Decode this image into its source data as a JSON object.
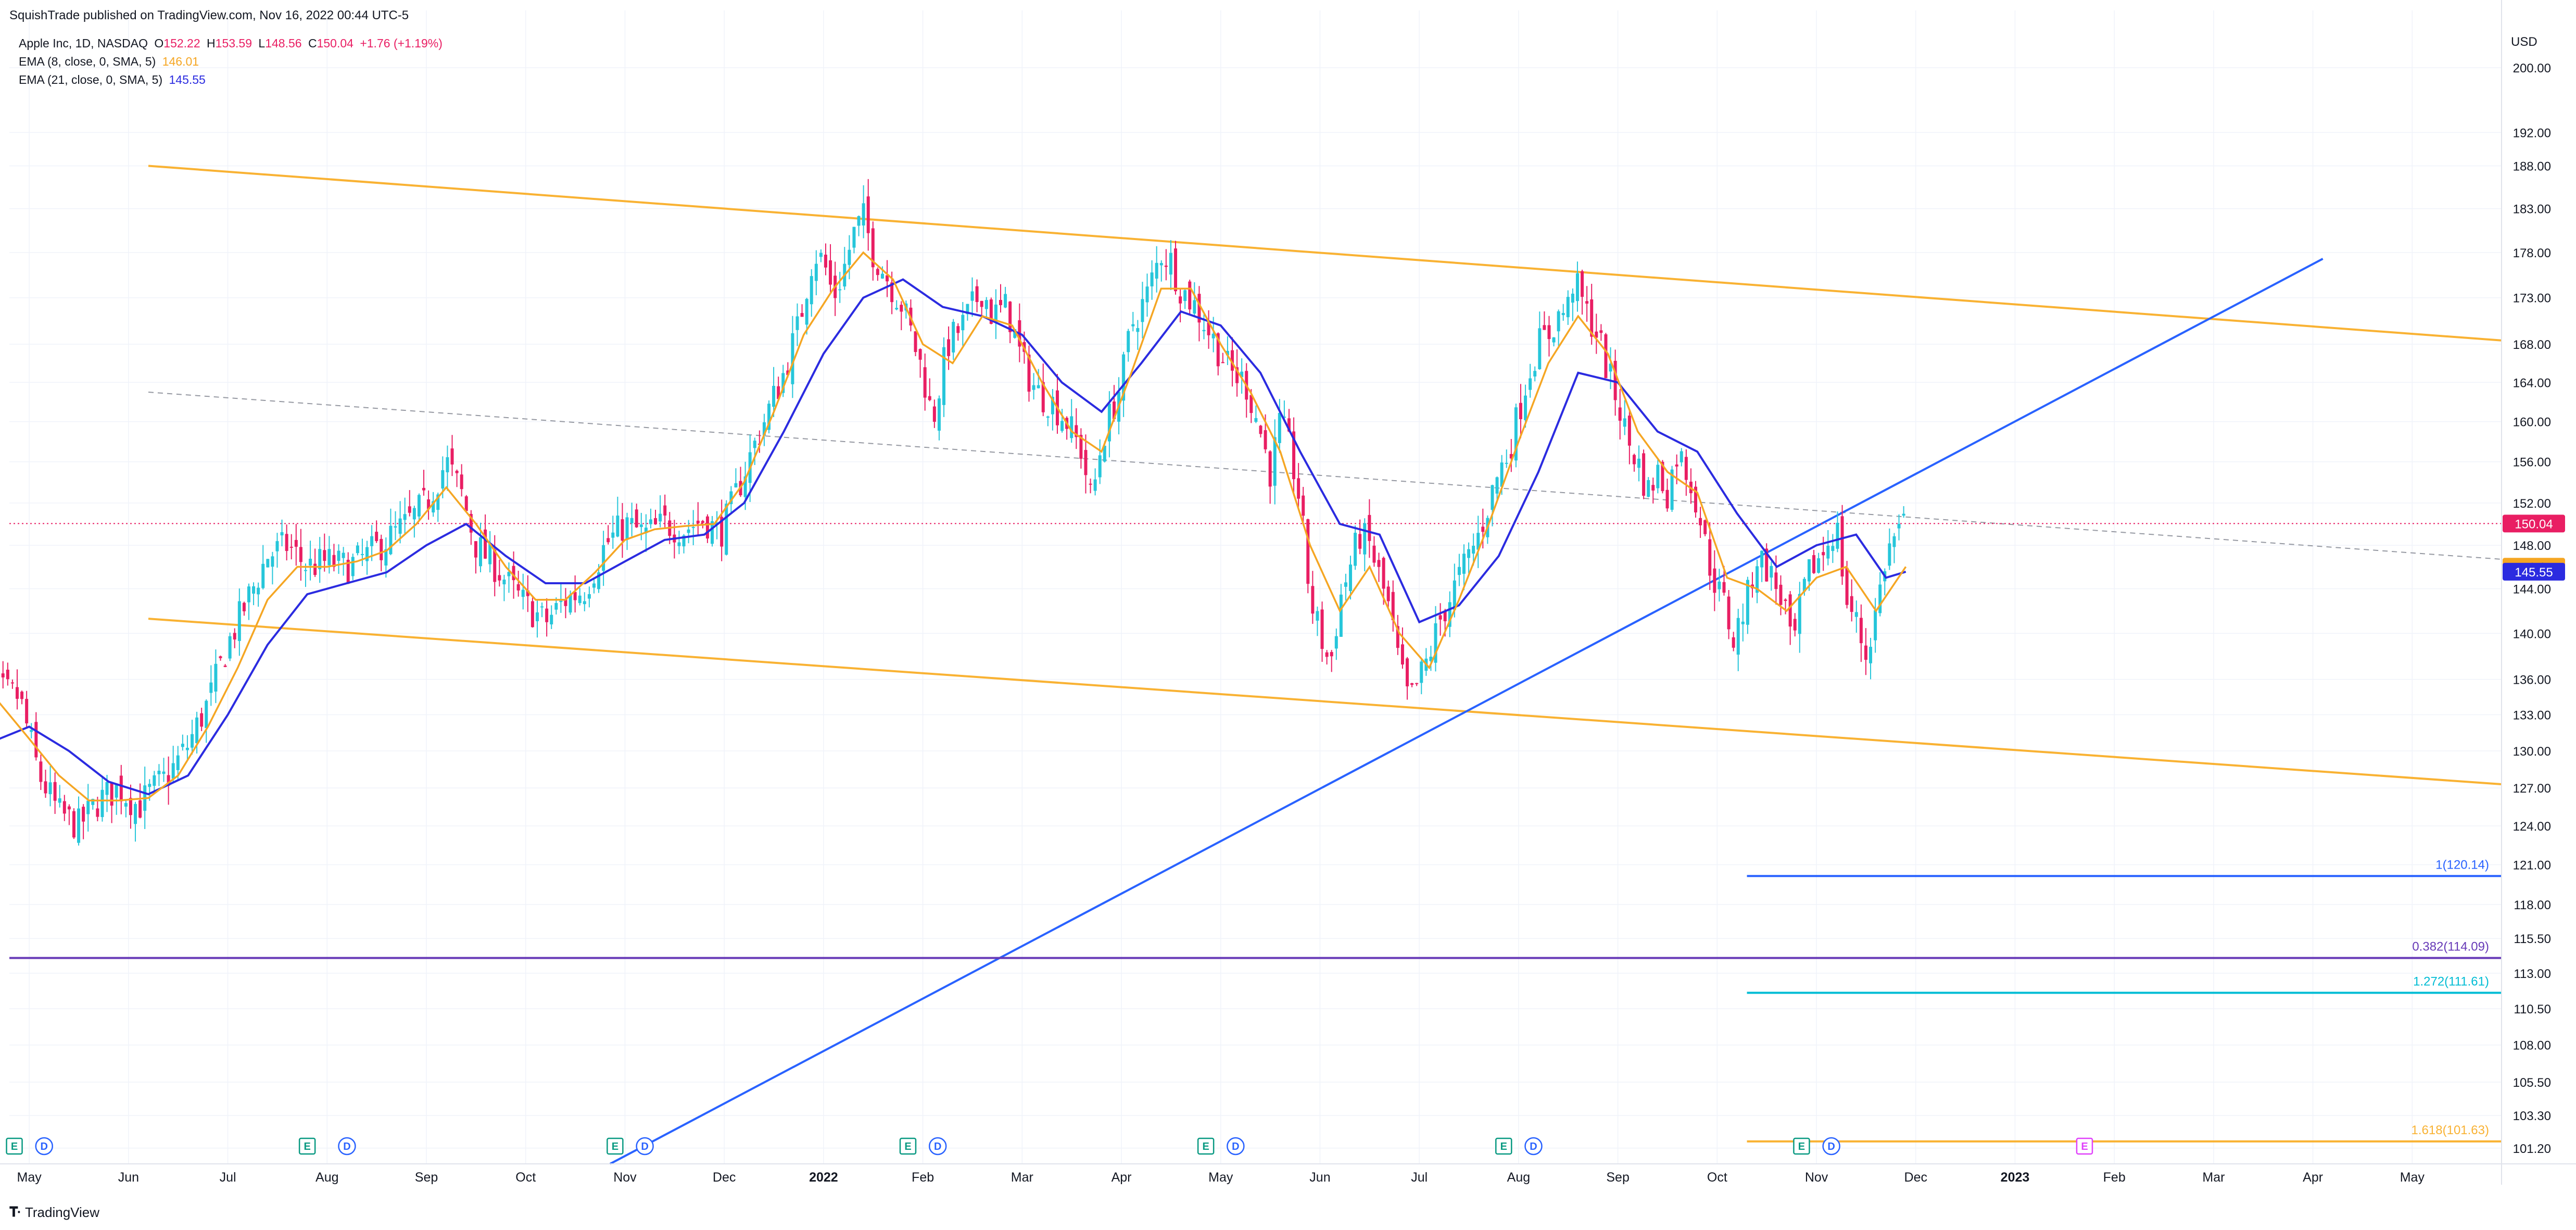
{
  "header": {
    "published": "SquishTrade published on TradingView.com, Nov 16, 2022 00:44 UTC-5"
  },
  "legend": {
    "symbol": "Apple Inc, 1D, NASDAQ",
    "o_label": "O",
    "o_value": "152.22",
    "h_label": "H",
    "h_value": "153.59",
    "l_label": "L",
    "l_value": "148.56",
    "c_label": "C",
    "c_value": "150.04",
    "change": "+1.76 (+1.19%)",
    "ema8_label": "EMA (8, close, 0, SMA, 5)",
    "ema8_value": "146.01",
    "ema21_label": "EMA (21, close, 0, SMA, 5)",
    "ema21_value": "145.55"
  },
  "footer": {
    "brand": "TradingView"
  },
  "colors": {
    "up": "#26c6da",
    "down": "#e91e63",
    "ema8": "#f5a623",
    "ema21": "#2b2be0",
    "channel": "#f9b233",
    "trend": "#2962ff",
    "grid": "#f0f3fa"
  },
  "chart_data": {
    "type": "candlestick",
    "title": "Apple Inc, 1D, NASDAQ",
    "yaxis": {
      "unit": "USD",
      "scale": "log",
      "ylim": [
        100.2,
        206.0
      ],
      "ticks": [
        "101.20",
        "103.30",
        "105.50",
        "108.00",
        "110.50",
        "113.00",
        "115.50",
        "118.00",
        "121.00",
        "124.00",
        "127.00",
        "130.00",
        "133.00",
        "136.00",
        "140.00",
        "144.00",
        "148.00",
        "152.00",
        "156.00",
        "160.00",
        "164.00",
        "168.00",
        "173.00",
        "178.00",
        "183.00",
        "188.00",
        "192.00",
        "200.00"
      ]
    },
    "xaxis": {
      "range_months": [
        -0.2,
        24.9
      ],
      "ticks": [
        {
          "label": "May",
          "m": 0
        },
        {
          "label": "Jun",
          "m": 1
        },
        {
          "label": "Jul",
          "m": 2
        },
        {
          "label": "Aug",
          "m": 3
        },
        {
          "label": "Sep",
          "m": 4
        },
        {
          "label": "Oct",
          "m": 5
        },
        {
          "label": "Nov",
          "m": 6
        },
        {
          "label": "Dec",
          "m": 7
        },
        {
          "label": "2022",
          "m": 8,
          "bold": true
        },
        {
          "label": "Feb",
          "m": 9
        },
        {
          "label": "Mar",
          "m": 10
        },
        {
          "label": "Apr",
          "m": 11
        },
        {
          "label": "May",
          "m": 12
        },
        {
          "label": "Jun",
          "m": 13
        },
        {
          "label": "Jul",
          "m": 14
        },
        {
          "label": "Aug",
          "m": 15
        },
        {
          "label": "Sep",
          "m": 16
        },
        {
          "label": "Oct",
          "m": 17
        },
        {
          "label": "Nov",
          "m": 18
        },
        {
          "label": "Dec",
          "m": 19
        },
        {
          "label": "2023",
          "m": 20,
          "bold": true
        },
        {
          "label": "Feb",
          "m": 21
        },
        {
          "label": "Mar",
          "m": 22
        },
        {
          "label": "Apr",
          "m": 23
        },
        {
          "label": "May",
          "m": 24
        }
      ]
    },
    "close_path": [
      [
        -0.55,
        134
      ],
      [
        -0.3,
        135
      ],
      [
        -0.1,
        134.5
      ],
      [
        0.1,
        128
      ],
      [
        0.3,
        125
      ],
      [
        0.5,
        124
      ],
      [
        0.7,
        126
      ],
      [
        0.9,
        127
      ],
      [
        1.1,
        125.5
      ],
      [
        1.2,
        126.5
      ],
      [
        1.4,
        128
      ],
      [
        1.6,
        130.5
      ],
      [
        1.8,
        134
      ],
      [
        2.0,
        139
      ],
      [
        2.2,
        143
      ],
      [
        2.4,
        147
      ],
      [
        2.6,
        148
      ],
      [
        2.8,
        146
      ],
      [
        3.0,
        146.5
      ],
      [
        3.2,
        146
      ],
      [
        3.4,
        147
      ],
      [
        3.6,
        148.5
      ],
      [
        3.8,
        150
      ],
      [
        4.0,
        152
      ],
      [
        4.2,
        156
      ],
      [
        4.35,
        153
      ],
      [
        4.5,
        148
      ],
      [
        4.7,
        146
      ],
      [
        4.9,
        143.5
      ],
      [
        5.0,
        142.5
      ],
      [
        5.2,
        141
      ],
      [
        5.4,
        143
      ],
      [
        5.6,
        144
      ],
      [
        5.8,
        148
      ],
      [
        6.0,
        150
      ],
      [
        6.2,
        149
      ],
      [
        6.4,
        150
      ],
      [
        6.6,
        149.5
      ],
      [
        6.8,
        150.5
      ],
      [
        6.95,
        149
      ],
      [
        7.05,
        151
      ],
      [
        7.2,
        155
      ],
      [
        7.4,
        160
      ],
      [
        7.6,
        165
      ],
      [
        7.75,
        170
      ],
      [
        7.9,
        178
      ],
      [
        8.0,
        177
      ],
      [
        8.1,
        173
      ],
      [
        8.2,
        176
      ],
      [
        8.3,
        180
      ],
      [
        8.4,
        182
      ],
      [
        8.5,
        178
      ],
      [
        8.6,
        176
      ],
      [
        8.8,
        172
      ],
      [
        9.0,
        165
      ],
      [
        9.1,
        160
      ],
      [
        9.25,
        168
      ],
      [
        9.4,
        170
      ],
      [
        9.5,
        172
      ],
      [
        9.6,
        174
      ],
      [
        9.7,
        171
      ],
      [
        9.85,
        172
      ],
      [
        10.0,
        166
      ],
      [
        10.15,
        163
      ],
      [
        10.3,
        162
      ],
      [
        10.45,
        160
      ],
      [
        10.6,
        157
      ],
      [
        10.7,
        152
      ],
      [
        10.8,
        158
      ],
      [
        10.9,
        161
      ],
      [
        11.0,
        164
      ],
      [
        11.1,
        170
      ],
      [
        11.25,
        173
      ],
      [
        11.4,
        178
      ],
      [
        11.5,
        177
      ],
      [
        11.6,
        174
      ],
      [
        11.75,
        172
      ],
      [
        11.9,
        169
      ],
      [
        12.0,
        167
      ],
      [
        12.1,
        165
      ],
      [
        12.25,
        164
      ],
      [
        12.4,
        159
      ],
      [
        12.5,
        155
      ],
      [
        12.6,
        160
      ],
      [
        12.7,
        157
      ],
      [
        12.8,
        152
      ],
      [
        12.9,
        143
      ],
      [
        13.0,
        140
      ],
      [
        13.1,
        137
      ],
      [
        13.2,
        143
      ],
      [
        13.3,
        146
      ],
      [
        13.4,
        149
      ],
      [
        13.5,
        148
      ],
      [
        13.6,
        145
      ],
      [
        13.7,
        142
      ],
      [
        13.8,
        137
      ],
      [
        13.9,
        134
      ],
      [
        14.0,
        136
      ],
      [
        14.1,
        138
      ],
      [
        14.2,
        141
      ],
      [
        14.3,
        143
      ],
      [
        14.4,
        145
      ],
      [
        14.5,
        147
      ],
      [
        14.6,
        149
      ],
      [
        14.7,
        152
      ],
      [
        14.8,
        155
      ],
      [
        14.9,
        157
      ],
      [
        15.0,
        161
      ],
      [
        15.1,
        165
      ],
      [
        15.2,
        168
      ],
      [
        15.3,
        169
      ],
      [
        15.4,
        171
      ],
      [
        15.5,
        172
      ],
      [
        15.55,
        175
      ],
      [
        15.7,
        171
      ],
      [
        15.8,
        169
      ],
      [
        15.9,
        165
      ],
      [
        16.0,
        162
      ],
      [
        16.1,
        158
      ],
      [
        16.2,
        156
      ],
      [
        16.3,
        153
      ],
      [
        16.4,
        155
      ],
      [
        16.5,
        153
      ],
      [
        16.6,
        157
      ],
      [
        16.7,
        155
      ],
      [
        16.8,
        152
      ],
      [
        16.9,
        147
      ],
      [
        17.0,
        144
      ],
      [
        17.1,
        142
      ],
      [
        17.15,
        139
      ],
      [
        17.3,
        143
      ],
      [
        17.4,
        147
      ],
      [
        17.5,
        146
      ],
      [
        17.6,
        144
      ],
      [
        17.7,
        142
      ],
      [
        17.75,
        138
      ],
      [
        17.85,
        143
      ],
      [
        17.95,
        146
      ],
      [
        18.05,
        147
      ],
      [
        18.2,
        150
      ],
      [
        18.3,
        143
      ],
      [
        18.4,
        141
      ],
      [
        18.5,
        138
      ],
      [
        18.6,
        142
      ],
      [
        18.7,
        147
      ],
      [
        18.8,
        149
      ],
      [
        18.9,
        150.04
      ]
    ],
    "ema8_path": [
      [
        -0.55,
        133
      ],
      [
        -0.3,
        134
      ],
      [
        0,
        131
      ],
      [
        0.3,
        128
      ],
      [
        0.6,
        126
      ],
      [
        0.9,
        126
      ],
      [
        1.2,
        126.2
      ],
      [
        1.5,
        128
      ],
      [
        1.8,
        132
      ],
      [
        2.1,
        137
      ],
      [
        2.4,
        143
      ],
      [
        2.7,
        146
      ],
      [
        3.0,
        146
      ],
      [
        3.3,
        146.5
      ],
      [
        3.6,
        147.5
      ],
      [
        3.9,
        150
      ],
      [
        4.2,
        153.5
      ],
      [
        4.5,
        150
      ],
      [
        4.8,
        146
      ],
      [
        5.1,
        143
      ],
      [
        5.4,
        143
      ],
      [
        5.7,
        145.5
      ],
      [
        6.0,
        148.5
      ],
      [
        6.3,
        149.5
      ],
      [
        6.6,
        149.8
      ],
      [
        6.9,
        150
      ],
      [
        7.2,
        154
      ],
      [
        7.5,
        161
      ],
      [
        7.8,
        169
      ],
      [
        8.1,
        174
      ],
      [
        8.4,
        178
      ],
      [
        8.7,
        175
      ],
      [
        9.0,
        168
      ],
      [
        9.3,
        166
      ],
      [
        9.6,
        171
      ],
      [
        9.9,
        170
      ],
      [
        10.2,
        164
      ],
      [
        10.5,
        159
      ],
      [
        10.8,
        157
      ],
      [
        11.1,
        165
      ],
      [
        11.4,
        174
      ],
      [
        11.7,
        174
      ],
      [
        12.0,
        168
      ],
      [
        12.3,
        163
      ],
      [
        12.6,
        157
      ],
      [
        12.9,
        148
      ],
      [
        13.2,
        142
      ],
      [
        13.5,
        146
      ],
      [
        13.8,
        140
      ],
      [
        14.1,
        137
      ],
      [
        14.4,
        143
      ],
      [
        14.7,
        150
      ],
      [
        15.0,
        158
      ],
      [
        15.3,
        166
      ],
      [
        15.6,
        171
      ],
      [
        15.9,
        167
      ],
      [
        16.2,
        159
      ],
      [
        16.5,
        155
      ],
      [
        16.8,
        153
      ],
      [
        17.1,
        145
      ],
      [
        17.4,
        144
      ],
      [
        17.7,
        142
      ],
      [
        18.0,
        145
      ],
      [
        18.3,
        146
      ],
      [
        18.6,
        142
      ],
      [
        18.9,
        146.01
      ]
    ],
    "ema21_path": [
      [
        -0.55,
        127
      ],
      [
        -0.3,
        131
      ],
      [
        0,
        132
      ],
      [
        0.4,
        130
      ],
      [
        0.8,
        127.5
      ],
      [
        1.2,
        126.5
      ],
      [
        1.6,
        128
      ],
      [
        2.0,
        133
      ],
      [
        2.4,
        139
      ],
      [
        2.8,
        143.5
      ],
      [
        3.2,
        144.5
      ],
      [
        3.6,
        145.5
      ],
      [
        4.0,
        148
      ],
      [
        4.4,
        150
      ],
      [
        4.8,
        147
      ],
      [
        5.2,
        144.5
      ],
      [
        5.6,
        144.5
      ],
      [
        6.0,
        146.5
      ],
      [
        6.4,
        148.5
      ],
      [
        6.8,
        149
      ],
      [
        7.2,
        152
      ],
      [
        7.6,
        159
      ],
      [
        8.0,
        167
      ],
      [
        8.4,
        173
      ],
      [
        8.8,
        175
      ],
      [
        9.2,
        172
      ],
      [
        9.6,
        171
      ],
      [
        10.0,
        169
      ],
      [
        10.4,
        164
      ],
      [
        10.8,
        161
      ],
      [
        11.2,
        166
      ],
      [
        11.6,
        171.5
      ],
      [
        12.0,
        170
      ],
      [
        12.4,
        165
      ],
      [
        12.8,
        157
      ],
      [
        13.2,
        150
      ],
      [
        13.6,
        149
      ],
      [
        14.0,
        141
      ],
      [
        14.4,
        142.5
      ],
      [
        14.8,
        147
      ],
      [
        15.2,
        155
      ],
      [
        15.6,
        165
      ],
      [
        16.0,
        164
      ],
      [
        16.4,
        159
      ],
      [
        16.8,
        157
      ],
      [
        17.2,
        151
      ],
      [
        17.6,
        146
      ],
      [
        18.0,
        148
      ],
      [
        18.4,
        149
      ],
      [
        18.7,
        145
      ],
      [
        18.9,
        145.55
      ]
    ],
    "channel_upper": [
      [
        1.2,
        188
      ],
      [
        24.9,
        168.4
      ]
    ],
    "channel_lower": [
      [
        1.2,
        141.3
      ],
      [
        24.9,
        127.3
      ]
    ],
    "channel_mid": [
      [
        1.2,
        163
      ],
      [
        24.9,
        146.7
      ]
    ],
    "trendline": [
      [
        5.85,
        100.2
      ],
      [
        23.1,
        177.3
      ]
    ],
    "last_price": {
      "value": 150.04,
      "label": "150.04"
    },
    "ema8_tag": {
      "value": 146.01,
      "label": "146.01"
    },
    "ema21_tag": {
      "value": 145.55,
      "label": "145.55"
    },
    "fib_levels": [
      {
        "label": "1(120.14)",
        "value": 120.14,
        "from_m": 17.3,
        "color": "#2962ff"
      },
      {
        "label": "0.382(114.09)",
        "value": 114.09,
        "from_m": -0.2,
        "color": "#673ab7"
      },
      {
        "label": "1.272(111.61)",
        "value": 111.61,
        "from_m": 17.3,
        "color": "#00bcd4"
      },
      {
        "label": "1.618(101.63)",
        "value": 101.63,
        "from_m": 17.3,
        "color": "#f9b233"
      }
    ],
    "events": [
      {
        "m": -0.15,
        "kind": "E"
      },
      {
        "m": 0.15,
        "kind": "D"
      },
      {
        "m": 2.8,
        "kind": "E"
      },
      {
        "m": 3.2,
        "kind": "D"
      },
      {
        "m": 5.9,
        "kind": "E"
      },
      {
        "m": 6.2,
        "kind": "D"
      },
      {
        "m": 8.85,
        "kind": "E"
      },
      {
        "m": 9.15,
        "kind": "D"
      },
      {
        "m": 11.85,
        "kind": "E"
      },
      {
        "m": 12.15,
        "kind": "D"
      },
      {
        "m": 14.85,
        "kind": "E"
      },
      {
        "m": 15.15,
        "kind": "D"
      },
      {
        "m": 17.85,
        "kind": "E"
      },
      {
        "m": 18.15,
        "kind": "D"
      },
      {
        "m": 20.7,
        "kind": "E",
        "future": true
      }
    ]
  }
}
